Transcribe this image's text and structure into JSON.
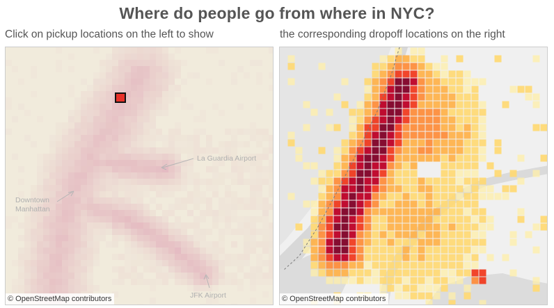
{
  "header": {
    "title": "Where do people go from where in NYC?"
  },
  "captions": {
    "left": "Click on pickup locations on the left to show",
    "right": "the corresponding dropoff locations on the right"
  },
  "pickup_map": {
    "labels": {
      "laguardia": "La Guardia Airport",
      "downtown_line1": "Downtown",
      "downtown_line2": "Manhattan",
      "jfk": "JFK Airport"
    },
    "attribution": "© OpenStreetMap contributors",
    "selected_cell_color": "#e8322a",
    "heat_color": "#d88aa6",
    "land_color": "#f3eedf"
  },
  "dropoff_map": {
    "attribution": "© OpenStreetMap contributors",
    "color_scale": [
      "#ffefa8",
      "#fed976",
      "#feb24c",
      "#fd8d3c",
      "#f03b20",
      "#bd0026",
      "#800026"
    ],
    "land_color": "#f0f0f0",
    "water_color": "#d9d9d9"
  }
}
